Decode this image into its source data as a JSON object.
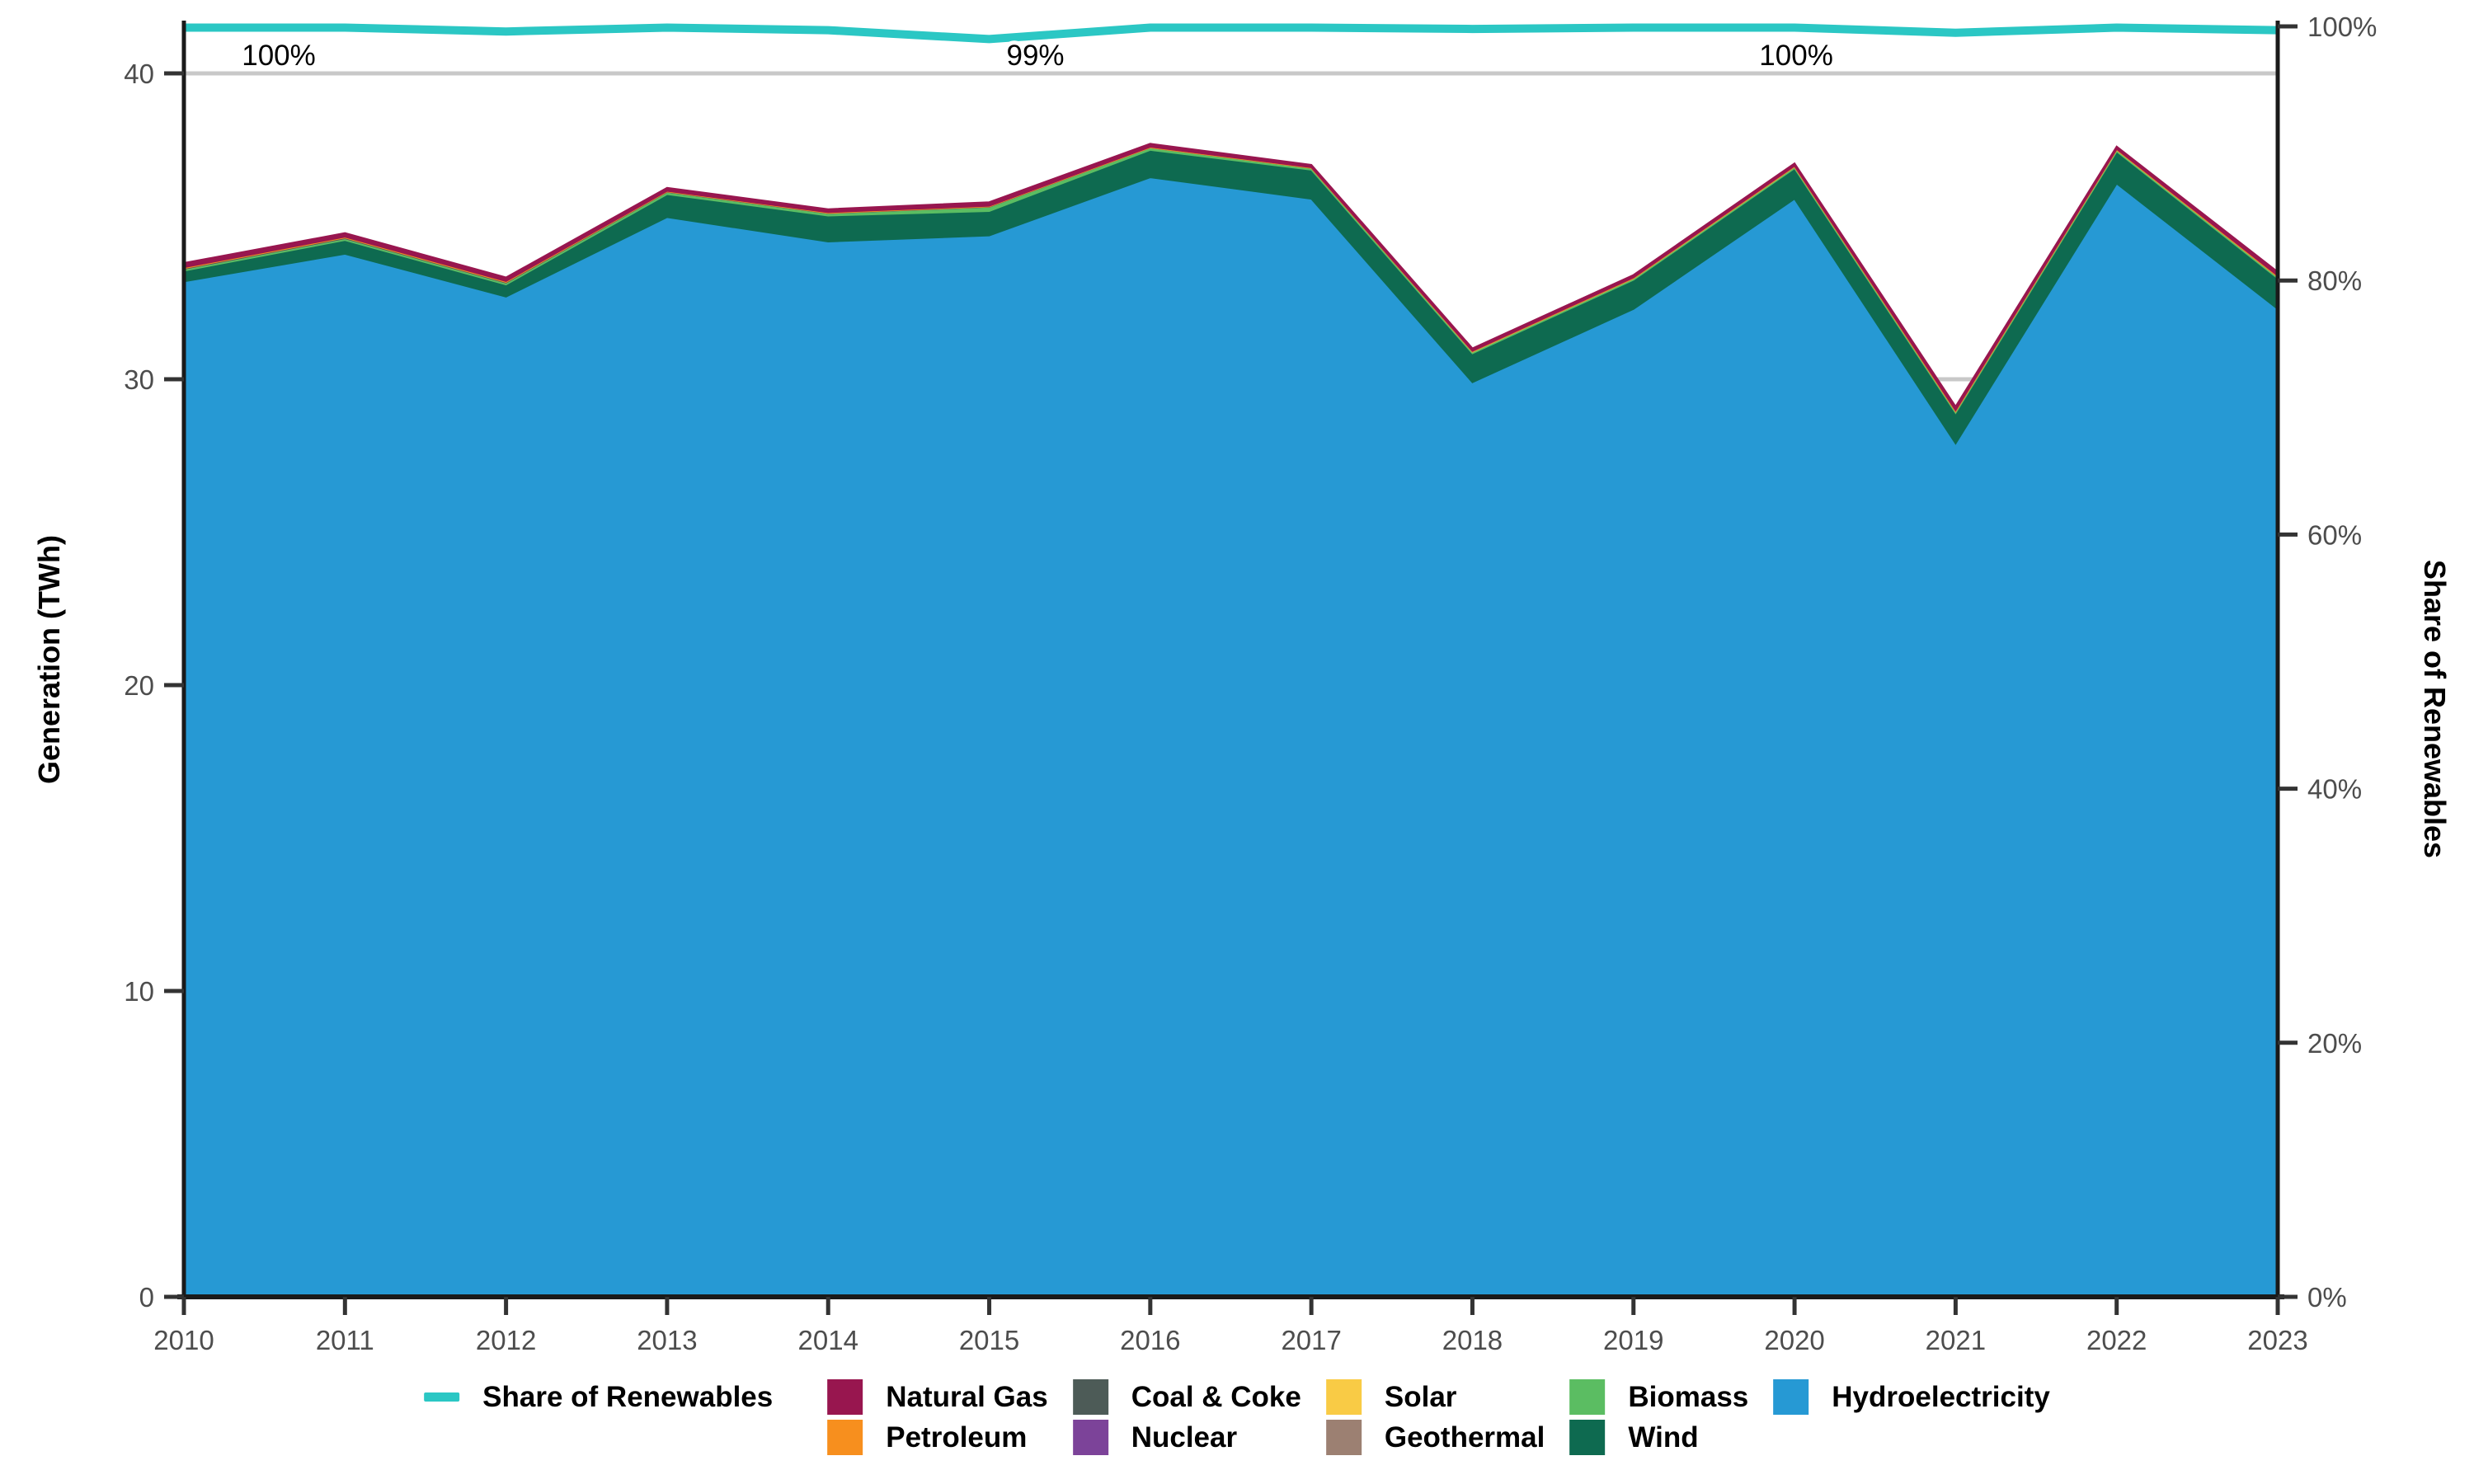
{
  "axes": {
    "y_left_title": "Generation (TWh)",
    "y_right_title": "Share of Renewables",
    "y_left_ticks": [
      0,
      10,
      20,
      30,
      40
    ],
    "y_right_ticks": [
      0,
      20,
      40,
      60,
      80,
      100
    ],
    "y_right_tick_suffix": "%",
    "x_ticks": [
      2010,
      2011,
      2012,
      2013,
      2014,
      2015,
      2016,
      2017,
      2018,
      2019,
      2020,
      2021,
      2022,
      2023
    ]
  },
  "annotations": [
    {
      "year": 2010,
      "label": "100%"
    },
    {
      "year": 2015,
      "label": "99%"
    },
    {
      "year": 2020,
      "label": "100%"
    }
  ],
  "colors": {
    "share_line": "#2BC7C4",
    "natural_gas": "#98164F",
    "petroleum": "#F78F1E",
    "coal_coke": "#4D5B57",
    "nuclear": "#7C4399",
    "solar": "#F9CB45",
    "geothermal": "#9C8072",
    "biomass": "#5BBD62",
    "wind": "#0E6A50",
    "hydro": "#2699D4",
    "gridline": "#C8C8C8",
    "axis": "#1A1A1A",
    "tick_text": "#4D4D4D"
  },
  "chart_data": {
    "type": "area",
    "x": [
      2010,
      2011,
      2012,
      2013,
      2014,
      2015,
      2016,
      2017,
      2018,
      2019,
      2020,
      2021,
      2022,
      2023
    ],
    "xlabel": "",
    "ylabel": "Generation (TWh)",
    "y2label": "Share of Renewables",
    "ylim": [
      0,
      42
    ],
    "y2lim": [
      0,
      102
    ],
    "grid": "horizontal-gray",
    "legend_position": "bottom",
    "stack_order_bottom_to_top": [
      "Hydroelectricity",
      "Wind",
      "Biomass",
      "Geothermal",
      "Solar",
      "Nuclear",
      "Coal & Coke",
      "Petroleum",
      "Natural Gas"
    ],
    "series": [
      {
        "name": "Hydroelectricity",
        "key": "hydro",
        "values": [
          33.2,
          34.1,
          32.7,
          35.3,
          34.5,
          34.7,
          36.6,
          35.9,
          29.9,
          32.3,
          35.9,
          27.9,
          36.4,
          32.3
        ]
      },
      {
        "name": "Wind",
        "key": "wind",
        "values": [
          0.35,
          0.45,
          0.4,
          0.75,
          0.85,
          0.8,
          0.9,
          0.95,
          0.95,
          0.95,
          1.0,
          1.0,
          1.05,
          1.0
        ]
      },
      {
        "name": "Biomass",
        "key": "biomass",
        "values": [
          0.06,
          0.06,
          0.06,
          0.08,
          0.08,
          0.14,
          0.08,
          0.06,
          0.05,
          0.05,
          0.05,
          0.05,
          0.05,
          0.05
        ]
      },
      {
        "name": "Geothermal",
        "key": "geothermal",
        "values": [
          0,
          0,
          0,
          0,
          0,
          0,
          0,
          0,
          0,
          0,
          0,
          0,
          0,
          0
        ]
      },
      {
        "name": "Solar",
        "key": "solar",
        "values": [
          0,
          0,
          0,
          0,
          0,
          0,
          0,
          0,
          0.01,
          0.01,
          0.01,
          0.01,
          0.01,
          0.01
        ]
      },
      {
        "name": "Nuclear",
        "key": "nuclear",
        "values": [
          0,
          0,
          0,
          0,
          0,
          0,
          0,
          0,
          0,
          0,
          0,
          0,
          0,
          0
        ]
      },
      {
        "name": "Coal & Coke",
        "key": "coal_coke",
        "values": [
          0.02,
          0.02,
          0.02,
          0.01,
          0.01,
          0.01,
          0,
          0,
          0,
          0,
          0,
          0,
          0,
          0
        ]
      },
      {
        "name": "Petroleum",
        "key": "petroleum",
        "values": [
          0.03,
          0.03,
          0.03,
          0.02,
          0.02,
          0.02,
          0.02,
          0.02,
          0.02,
          0.02,
          0.02,
          0.03,
          0.02,
          0.03
        ]
      },
      {
        "name": "Natural Gas",
        "key": "natural_gas",
        "values": [
          0.14,
          0.12,
          0.12,
          0.1,
          0.1,
          0.12,
          0.1,
          0.08,
          0.08,
          0.08,
          0.08,
          0.12,
          0.08,
          0.12
        ]
      }
    ],
    "line_series": {
      "name": "Share of Renewables",
      "key": "share_line",
      "unit": "%",
      "values": [
        99.9,
        99.9,
        99.6,
        99.9,
        99.7,
        99.0,
        99.9,
        99.9,
        99.8,
        99.9,
        99.9,
        99.5,
        99.9,
        99.7
      ]
    }
  },
  "legend": {
    "columns": [
      [
        {
          "label": "Share of Renewables",
          "key": "share_line",
          "swatch": "line"
        }
      ],
      [
        {
          "label": "Natural Gas",
          "key": "natural_gas",
          "swatch": "box"
        },
        {
          "label": "Petroleum",
          "key": "petroleum",
          "swatch": "box"
        }
      ],
      [
        {
          "label": "Coal & Coke",
          "key": "coal_coke",
          "swatch": "box"
        },
        {
          "label": "Nuclear",
          "key": "nuclear",
          "swatch": "box"
        }
      ],
      [
        {
          "label": "Solar",
          "key": "solar",
          "swatch": "box"
        },
        {
          "label": "Geothermal",
          "key": "geothermal",
          "swatch": "box"
        }
      ],
      [
        {
          "label": "Biomass",
          "key": "biomass",
          "swatch": "box"
        },
        {
          "label": "Wind",
          "key": "wind",
          "swatch": "box"
        }
      ],
      [
        {
          "label": "Hydroelectricity",
          "key": "hydro",
          "swatch": "box"
        }
      ]
    ]
  }
}
